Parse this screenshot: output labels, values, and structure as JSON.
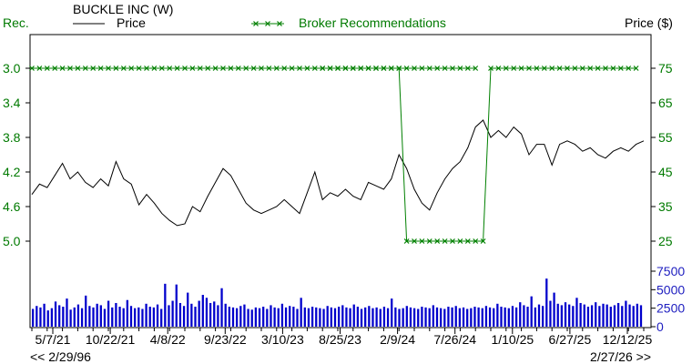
{
  "header": {
    "rec_axis_label": "Rec.",
    "title": "BUCKLE INC (W)",
    "price_legend": "Price",
    "broker_legend": "Broker Recommendations",
    "price_axis_label": "Price ($)"
  },
  "footer": {
    "range_start": "<< 2/29/96",
    "range_end": "2/27/26 >>"
  },
  "colors": {
    "price_line": "#000000",
    "recommendation_line": "#008000",
    "volume_bars": "#0000cc",
    "price_axis_text": "#007a00",
    "volume_axis_text": "#2020c0"
  },
  "chart_data": {
    "type": "line",
    "x_tick_labels": [
      "5/7/21",
      "10/22/21",
      "4/8/22",
      "9/23/22",
      "3/10/23",
      "8/25/23",
      "2/9/24",
      "7/26/24",
      "1/10/25",
      "6/27/25",
      "12/12/25"
    ],
    "rec_axis": {
      "ticks": [
        "3.0",
        "3.4",
        "3.8",
        "4.2",
        "4.6",
        "5.0"
      ],
      "range": [
        3.0,
        5.0
      ],
      "inverted": true
    },
    "price_axis": {
      "ticks": [
        "75",
        "65",
        "55",
        "45",
        "35",
        "25"
      ],
      "range": [
        25,
        75
      ]
    },
    "volume_axis": {
      "ticks": [
        "7500",
        "5000",
        "2500",
        "0"
      ],
      "range": [
        0,
        7500
      ]
    },
    "price_series": {
      "name": "Price",
      "x_weeks": [
        0,
        4,
        8,
        12,
        16,
        20,
        24,
        28,
        32,
        36,
        40,
        44,
        48,
        52,
        56,
        60,
        64,
        68,
        72,
        76,
        80,
        84,
        88,
        92,
        96,
        100,
        104,
        108,
        112,
        116,
        120,
        124,
        128,
        132,
        136,
        140,
        144,
        148,
        152,
        156,
        160,
        164,
        168,
        172,
        176,
        180,
        184,
        188,
        192,
        196,
        200,
        204,
        208,
        212,
        216,
        220,
        224,
        228,
        232,
        236,
        240,
        244,
        248,
        252,
        256,
        260,
        264,
        268,
        272,
        276,
        280,
        284,
        288,
        292,
        296,
        300,
        304,
        308,
        312,
        316,
        320
      ],
      "values": [
        38.5,
        41.5,
        40.5,
        44,
        47.5,
        43,
        45,
        42,
        40.5,
        43,
        41,
        48,
        43,
        41.5,
        35.5,
        38.5,
        36,
        33,
        31,
        29.5,
        30,
        35,
        33.5,
        38,
        42,
        46,
        44,
        40,
        36,
        34,
        33,
        34,
        35,
        37,
        35,
        33,
        39,
        45,
        37,
        39,
        38,
        40,
        38,
        37,
        42,
        41,
        40,
        43,
        50,
        46,
        40,
        36,
        34,
        39,
        43,
        46,
        48,
        52,
        58,
        60,
        55,
        57,
        55,
        58,
        56,
        50,
        53,
        53,
        47,
        53,
        54,
        53,
        51,
        52,
        50,
        49,
        51,
        52,
        51,
        53,
        54
      ]
    },
    "recommendation_series": {
      "name": "Broker Recommendations",
      "segments": [
        {
          "x_weeks": [
            0,
            4,
            8,
            12,
            16,
            20,
            24,
            28,
            32,
            36,
            40,
            44,
            48,
            52,
            56,
            60,
            64,
            68,
            72,
            76,
            80,
            84,
            88,
            92,
            96,
            100,
            104,
            108,
            112,
            116,
            120,
            124,
            128,
            132,
            136,
            140,
            144,
            148,
            152,
            156,
            160,
            164,
            168,
            172,
            176,
            180,
            184,
            188,
            192,
            196,
            200,
            204,
            208,
            212,
            216,
            220,
            224,
            228,
            232
          ],
          "value": 3.0
        },
        {
          "x_weeks": [
            152,
            156,
            160,
            164,
            168,
            172,
            176,
            180,
            184,
            188,
            192
          ],
          "value": 3.0
        },
        {
          "x_weeks": [
            196,
            200,
            204,
            208,
            212,
            216,
            220,
            224,
            228,
            232,
            236
          ],
          "value": 5.0
        },
        {
          "x_weeks": [
            240,
            244,
            248,
            252,
            256,
            260,
            264,
            268,
            272,
            276,
            280,
            284,
            288,
            292,
            296,
            300,
            304,
            308,
            312,
            316
          ],
          "value": 3.0
        }
      ],
      "transitions": [
        {
          "from_week": 192,
          "from_value": 3.0,
          "to_week": 196,
          "to_value": 5.0
        },
        {
          "from_week": 236,
          "from_value": 5.0,
          "to_week": 240,
          "to_value": 3.0
        }
      ]
    },
    "volume_series": {
      "name": "Volume",
      "values": [
        2400,
        2800,
        2600,
        3100,
        2200,
        2500,
        3400,
        2900,
        2700,
        3800,
        2300,
        2600,
        3000,
        2500,
        4200,
        2800,
        2600,
        3100,
        2900,
        2400,
        3500,
        2600,
        3200,
        2700,
        2500,
        3600,
        2800,
        2500,
        2600,
        2400,
        3100,
        2700,
        2600,
        3000,
        2400,
        5800,
        2900,
        3500,
        5700,
        3200,
        2800,
        4600,
        3100,
        2700,
        3500,
        4300,
        3900,
        3200,
        3400,
        2900,
        5200,
        3100,
        2700,
        2600,
        2500,
        2800,
        3000,
        2400,
        2300,
        2600,
        2500,
        2700,
        2400,
        2900,
        2600,
        2500,
        3100,
        2600,
        2800,
        2700,
        2400,
        3900,
        2600,
        2500,
        2700,
        2600,
        2500,
        2400,
        2800,
        2600,
        2500,
        2700,
        2900,
        2600,
        2500,
        3000,
        2700,
        2400,
        2600,
        2800,
        2500,
        2600,
        2400,
        2700,
        2500,
        3800,
        2600,
        2400,
        2500,
        2800,
        2600,
        2500,
        2400,
        2700,
        2600,
        2500,
        2900,
        2600,
        2500,
        2400,
        2700,
        2600,
        2800,
        2500,
        2600,
        2400,
        2500,
        2700,
        2600,
        2500,
        2800,
        2600,
        2500,
        3100,
        2700,
        2600,
        2500,
        2800,
        2600,
        3300,
        2900,
        2700,
        4100,
        2600,
        3000,
        2800,
        6500,
        3500,
        4600,
        3100,
        2900,
        3300,
        3000,
        2800,
        3900,
        3200,
        3000,
        2700,
        2900,
        3300,
        2800,
        3100,
        3000,
        2700,
        2900,
        3200,
        2800,
        3500,
        3000,
        2800,
        3100,
        2900
      ]
    }
  }
}
